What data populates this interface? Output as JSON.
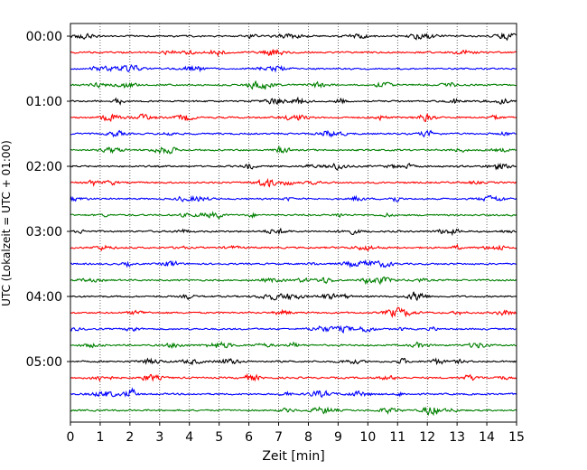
{
  "chart_data": {
    "type": "line",
    "title": "",
    "xlabel": "Zeit  [min]",
    "ylabel": "UTC (Lokalzeit = UTC + 01:00)",
    "xlim": [
      0,
      15
    ],
    "x_ticks": [
      "0",
      "1",
      "2",
      "3",
      "4",
      "5",
      "6",
      "7",
      "8",
      "9",
      "10",
      "11",
      "12",
      "13",
      "14",
      "15"
    ],
    "y_ticks": [
      {
        "label": "00:00",
        "row": 0
      },
      {
        "label": "01:00",
        "row": 4
      },
      {
        "label": "02:00",
        "row": 8
      },
      {
        "label": "03:00",
        "row": 12
      },
      {
        "label": "04:00",
        "row": 16
      },
      {
        "label": "05:00",
        "row": 20
      }
    ],
    "grid": "vertical dotted",
    "row_minutes": 15,
    "row_count": 24,
    "series_colors": [
      "#000000",
      "#ff0000",
      "#0000ff",
      "#008000"
    ],
    "traces": [
      {
        "start": "00:00",
        "color": "#000000"
      },
      {
        "start": "00:15",
        "color": "#ff0000"
      },
      {
        "start": "00:30",
        "color": "#0000ff"
      },
      {
        "start": "00:45",
        "color": "#008000"
      },
      {
        "start": "01:00",
        "color": "#000000"
      },
      {
        "start": "01:15",
        "color": "#ff0000"
      },
      {
        "start": "01:30",
        "color": "#0000ff"
      },
      {
        "start": "01:45",
        "color": "#008000"
      },
      {
        "start": "02:00",
        "color": "#000000"
      },
      {
        "start": "02:15",
        "color": "#ff0000"
      },
      {
        "start": "02:30",
        "color": "#0000ff"
      },
      {
        "start": "02:45",
        "color": "#008000"
      },
      {
        "start": "03:00",
        "color": "#000000"
      },
      {
        "start": "03:15",
        "color": "#ff0000"
      },
      {
        "start": "03:30",
        "color": "#0000ff"
      },
      {
        "start": "03:45",
        "color": "#008000"
      },
      {
        "start": "04:00",
        "color": "#000000"
      },
      {
        "start": "04:15",
        "color": "#ff0000"
      },
      {
        "start": "04:30",
        "color": "#0000ff"
      },
      {
        "start": "04:45",
        "color": "#008000"
      },
      {
        "start": "05:00",
        "color": "#000000"
      },
      {
        "start": "05:15",
        "color": "#ff0000"
      },
      {
        "start": "05:30",
        "color": "#0000ff"
      },
      {
        "start": "05:45",
        "color": "#008000"
      }
    ]
  }
}
